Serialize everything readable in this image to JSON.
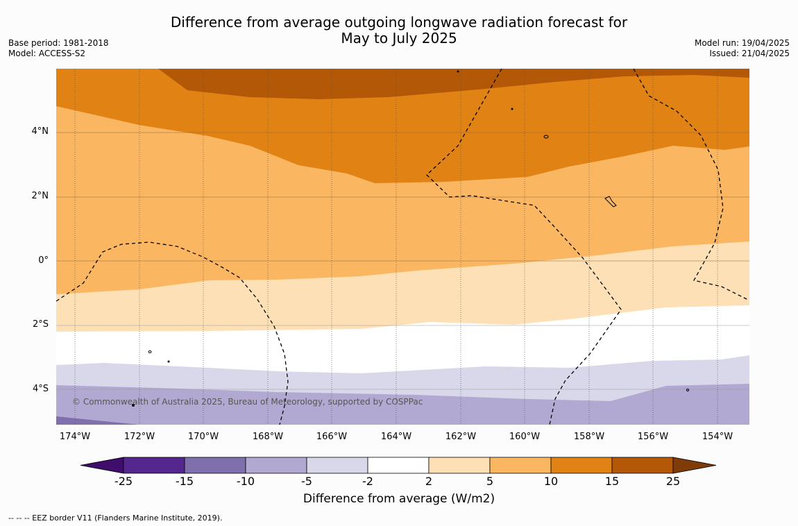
{
  "title_line1": "Difference from average outgoing longwave radiation forecast for",
  "title_line2": "May to July 2025",
  "meta_left": [
    "Base period: 1981-2018",
    "Model: ACCESS-S2"
  ],
  "meta_right": [
    "Model run: 19/04/2025",
    "Issued: 21/04/2025"
  ],
  "lat_labels": [
    "4°N",
    "2°N",
    "0°",
    "2°S",
    "4°S"
  ],
  "lon_labels": [
    "174°W",
    "172°W",
    "170°W",
    "168°W",
    "166°W",
    "164°W",
    "162°W",
    "160°W",
    "158°W",
    "156°W",
    "154°W"
  ],
  "copyright": "© Commonwealth of Australia 2025, Bureau of Meteorology, supported by COSPPac",
  "colorbar": {
    "ticks": [
      "-25",
      "-15",
      "-10",
      "-5",
      "-2",
      "2",
      "5",
      "10",
      "15",
      "25"
    ],
    "colors": [
      "#3f0d6b",
      "#54278f",
      "#7f70ad",
      "#b1a9d1",
      "#d8d8ea",
      "#ffffff",
      "#fee0b6",
      "#fbb662",
      "#e08214",
      "#b35806",
      "#7f3b08"
    ],
    "title": "Difference from average (W/m2)"
  },
  "footer": "--  --  -- EEZ border V11 (Flanders Marine Institute, 2019)."
}
